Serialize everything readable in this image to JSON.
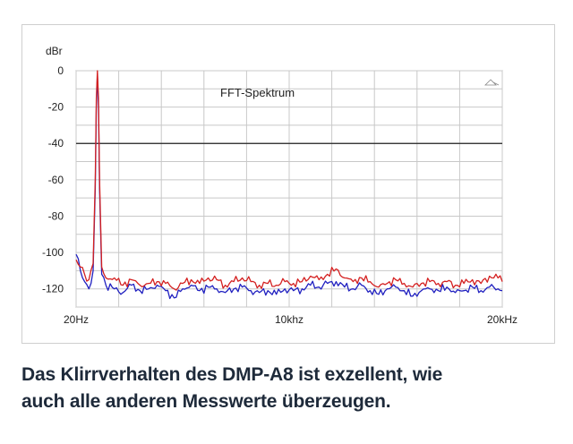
{
  "chart_data": {
    "type": "line",
    "title": "FFT-Spektrum",
    "ylabel": "dBr",
    "xlabel": "",
    "ylim": [
      -130,
      0
    ],
    "xlim": [
      0,
      20000
    ],
    "y_ticks": [
      0,
      -20,
      -40,
      -60,
      -80,
      -100,
      -120
    ],
    "y_tick_labels": [
      "0",
      "-20",
      "-40",
      "-60",
      "-80",
      "-100",
      "-120"
    ],
    "x_ticks": [
      0,
      10000,
      20000
    ],
    "x_tick_labels": [
      "20Hz",
      "10khz",
      "20kHz"
    ],
    "grid": true,
    "reference_line_db": -40,
    "series": [
      {
        "color": "#d42020",
        "x": [
          0,
          200,
          400,
          600,
          800,
          900,
          950,
          1000,
          1050,
          1100,
          1200,
          1400,
          1800,
          2200,
          2600,
          3000,
          3400,
          3800,
          4200,
          4600,
          5000,
          5400,
          5800,
          6200,
          6600,
          7000,
          7400,
          7800,
          8200,
          8600,
          9000,
          9400,
          9800,
          10200,
          10600,
          11000,
          11400,
          11800,
          12200,
          12600,
          13000,
          13400,
          13800,
          14200,
          14600,
          15000,
          15400,
          15800,
          16200,
          16600,
          17000,
          17400,
          17800,
          18200,
          18600,
          19000,
          19400,
          19800,
          20000
        ],
        "y": [
          -104,
          -108,
          -112,
          -115,
          -106,
          -60,
          -15,
          0,
          -15,
          -60,
          -108,
          -114,
          -114,
          -118,
          -115,
          -118,
          -117,
          -116,
          -117,
          -120,
          -117,
          -115,
          -117,
          -114,
          -115,
          -118,
          -116,
          -114,
          -116,
          -118,
          -117,
          -118,
          -116,
          -117,
          -116,
          -113,
          -115,
          -112,
          -109,
          -114,
          -116,
          -114,
          -116,
          -119,
          -117,
          -115,
          -117,
          -119,
          -117,
          -116,
          -117,
          -116,
          -118,
          -117,
          -115,
          -117,
          -113,
          -114,
          -116
        ]
      },
      {
        "color": "#2020c0",
        "x": [
          0,
          200,
          400,
          600,
          800,
          900,
          950,
          1000,
          1050,
          1100,
          1200,
          1400,
          1800,
          2200,
          2600,
          3000,
          3400,
          3800,
          4200,
          4600,
          5000,
          5400,
          5800,
          6200,
          6600,
          7000,
          7400,
          7800,
          8200,
          8600,
          9000,
          9400,
          9800,
          10200,
          10600,
          11000,
          11400,
          11800,
          12200,
          12600,
          13000,
          13400,
          13800,
          14200,
          14600,
          15000,
          15400,
          15800,
          16200,
          16600,
          17000,
          17400,
          17800,
          18200,
          18600,
          19000,
          19400,
          19800,
          20000
        ],
        "y": [
          -101,
          -110,
          -116,
          -120,
          -110,
          -65,
          -20,
          -2,
          -20,
          -65,
          -112,
          -118,
          -120,
          -122,
          -118,
          -121,
          -120,
          -118,
          -121,
          -125,
          -120,
          -118,
          -121,
          -119,
          -120,
          -122,
          -120,
          -119,
          -121,
          -122,
          -121,
          -123,
          -120,
          -121,
          -120,
          -118,
          -119,
          -117,
          -116,
          -119,
          -120,
          -118,
          -121,
          -123,
          -120,
          -119,
          -121,
          -124,
          -121,
          -120,
          -121,
          -119,
          -122,
          -121,
          -119,
          -121,
          -119,
          -120,
          -121
        ]
      }
    ]
  },
  "caption": {
    "line1": "Das Klirrverhalten des DMP-A8 ist exzellent, wie",
    "line2": "auch alle anderen Messwerte überzeugen."
  }
}
